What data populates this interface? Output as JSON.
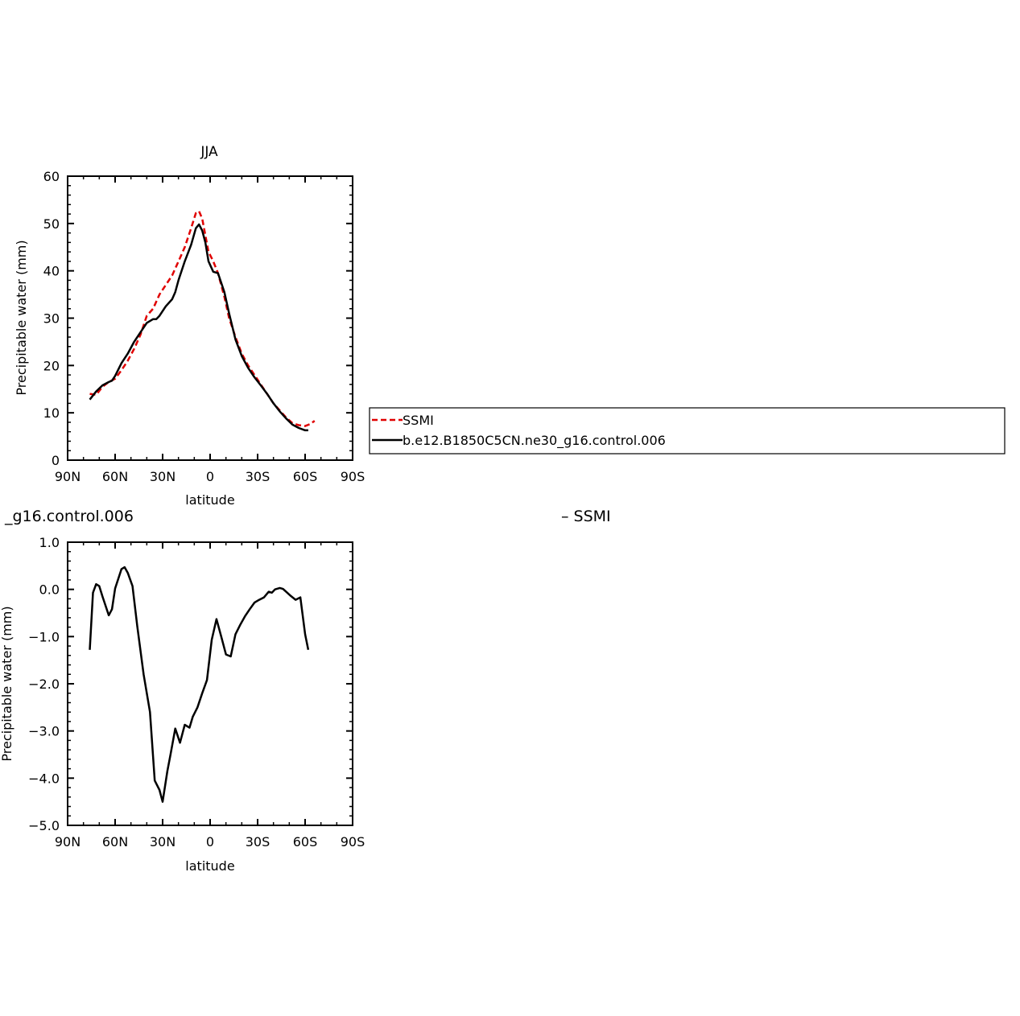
{
  "chart_data": [
    {
      "type": "line",
      "title": "JJA",
      "xlabel": "latitude",
      "ylabel": "Precipitable water (mm)",
      "xlim": [
        -90,
        90
      ],
      "ylim": [
        0,
        60
      ],
      "x_ticks": [
        {
          "value": -90,
          "label": "90N"
        },
        {
          "value": -60,
          "label": "60N"
        },
        {
          "value": -30,
          "label": "30N"
        },
        {
          "value": 0,
          "label": "0"
        },
        {
          "value": 30,
          "label": "30S"
        },
        {
          "value": 60,
          "label": "60S"
        },
        {
          "value": 90,
          "label": "90S"
        }
      ],
      "y_ticks": [
        {
          "value": 0,
          "label": "0"
        },
        {
          "value": 10,
          "label": "10"
        },
        {
          "value": 20,
          "label": "20"
        },
        {
          "value": 30,
          "label": "30"
        },
        {
          "value": 40,
          "label": "40"
        },
        {
          "value": 50,
          "label": "50"
        },
        {
          "value": 60,
          "label": "60"
        }
      ],
      "legend": {
        "placement": "right",
        "entries": [
          "SSMI",
          "b.e12.B1850C5CN.ne30_g16.control.006"
        ]
      },
      "series": [
        {
          "name": "SSMI",
          "color": "#e00000",
          "dash": true,
          "x": [
            -76,
            -72,
            -68,
            -64,
            -60,
            -56,
            -52,
            -48,
            -44,
            -40,
            -36,
            -32,
            -28,
            -24,
            -20,
            -16,
            -12,
            -9,
            -7,
            -5,
            -3,
            -1,
            2,
            5,
            9,
            12,
            16,
            20,
            24,
            28,
            32,
            36,
            40,
            44,
            48,
            52,
            56,
            60,
            63,
            66
          ],
          "y": [
            14.0,
            13.8,
            15.5,
            16.5,
            17.2,
            19.0,
            21.0,
            23.5,
            26.5,
            30.5,
            32.0,
            35.0,
            37.0,
            39.0,
            42.0,
            45.0,
            49.0,
            52.2,
            52.6,
            51.0,
            47.5,
            44.0,
            42.0,
            39.5,
            34.5,
            30.0,
            26.0,
            22.5,
            20.0,
            18.0,
            16.0,
            14.0,
            12.0,
            10.5,
            9.0,
            7.8,
            7.4,
            7.2,
            7.6,
            8.3
          ]
        },
        {
          "name": "b.e12.B1850C5CN.ne30_g16.control.006",
          "color": "#000000",
          "dash": false,
          "x": [
            -76,
            -72,
            -68,
            -64,
            -62,
            -60,
            -56,
            -52,
            -48,
            -44,
            -40,
            -36,
            -34,
            -32,
            -28,
            -24,
            -22,
            -20,
            -16,
            -12,
            -9,
            -7,
            -5,
            -3,
            -1,
            2,
            5,
            9,
            12,
            16,
            20,
            24,
            28,
            32,
            36,
            40,
            44,
            48,
            52,
            56,
            60,
            62
          ],
          "y": [
            12.8,
            14.5,
            15.8,
            16.5,
            16.8,
            17.8,
            20.5,
            22.5,
            25.0,
            27.0,
            29.0,
            29.8,
            29.8,
            30.5,
            32.5,
            34.0,
            35.5,
            38.0,
            42.0,
            45.5,
            49.0,
            49.8,
            48.5,
            46.0,
            42.0,
            39.8,
            39.5,
            35.5,
            31.0,
            25.5,
            22.0,
            19.5,
            17.5,
            15.8,
            14.0,
            12.0,
            10.3,
            8.8,
            7.5,
            6.8,
            6.3,
            6.3
          ]
        }
      ]
    },
    {
      "type": "line",
      "title": "_g16.control.006",
      "title_right": "– SSMI",
      "xlabel": "latitude",
      "ylabel": "Precipitable water (mm)",
      "xlim": [
        -90,
        90
      ],
      "ylim": [
        -5.0,
        1.0
      ],
      "x_ticks": [
        {
          "value": -90,
          "label": "90N"
        },
        {
          "value": -60,
          "label": "60N"
        },
        {
          "value": -30,
          "label": "30N"
        },
        {
          "value": 0,
          "label": "0"
        },
        {
          "value": 30,
          "label": "30S"
        },
        {
          "value": 60,
          "label": "60S"
        },
        {
          "value": 90,
          "label": "90S"
        }
      ],
      "y_ticks": [
        {
          "value": -5.0,
          "label": "−5.0"
        },
        {
          "value": -4.0,
          "label": "−4.0"
        },
        {
          "value": -3.0,
          "label": "−3.0"
        },
        {
          "value": -2.0,
          "label": "−2.0"
        },
        {
          "value": -1.0,
          "label": "−1.0"
        },
        {
          "value": 0.0,
          "label": "0.0"
        },
        {
          "value": 1.0,
          "label": "1.0"
        }
      ],
      "series": [
        {
          "color": "#000000",
          "dash": false,
          "x": [
            -76,
            -74,
            -72,
            -70,
            -68,
            -64,
            -62,
            -60,
            -56,
            -54,
            -52,
            -49,
            -46,
            -42,
            -38,
            -35,
            -32,
            -30,
            -27,
            -25,
            -22,
            -19,
            -16,
            -13,
            -11,
            -8,
            -5,
            -2,
            1,
            4,
            7,
            10,
            13,
            16,
            19,
            22,
            25,
            28,
            31,
            34,
            37,
            39,
            41,
            44,
            46,
            48,
            51,
            54,
            57,
            60,
            62
          ],
          "y": [
            -1.28,
            -0.07,
            0.11,
            0.07,
            -0.15,
            -0.55,
            -0.42,
            0.02,
            0.43,
            0.47,
            0.35,
            0.07,
            -0.78,
            -1.8,
            -2.6,
            -4.05,
            -4.25,
            -4.5,
            -3.85,
            -3.5,
            -2.95,
            -3.25,
            -2.87,
            -2.93,
            -2.7,
            -2.5,
            -2.2,
            -1.92,
            -1.07,
            -0.63,
            -1.0,
            -1.38,
            -1.42,
            -0.95,
            -0.75,
            -0.57,
            -0.42,
            -0.28,
            -0.22,
            -0.17,
            -0.05,
            -0.07,
            0.0,
            0.03,
            0.01,
            -0.05,
            -0.14,
            -0.22,
            -0.17,
            -0.95,
            -1.28
          ]
        }
      ]
    }
  ]
}
